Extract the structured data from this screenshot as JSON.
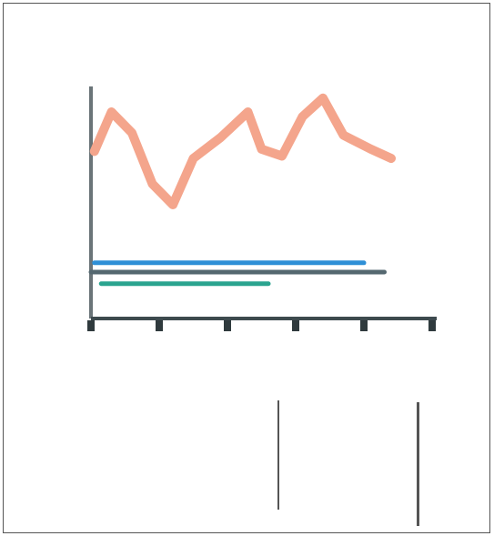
{
  "chart_data": {
    "type": "line",
    "title": "",
    "xlabel": "",
    "ylabel": "",
    "x": [
      0,
      1,
      2,
      3,
      4,
      5
    ],
    "xlim": [
      0,
      5
    ],
    "ylim": [
      0,
      10
    ],
    "grid": false,
    "series": [
      {
        "color": "#f4a58c",
        "points": [
          [
            0.05,
            7.2
          ],
          [
            0.3,
            8.9
          ],
          [
            0.6,
            8.0
          ],
          [
            0.9,
            5.8
          ],
          [
            1.2,
            4.9
          ],
          [
            1.5,
            6.9
          ],
          [
            1.9,
            7.8
          ],
          [
            2.3,
            8.9
          ],
          [
            2.5,
            7.3
          ],
          [
            2.8,
            7.0
          ],
          [
            3.1,
            8.7
          ],
          [
            3.4,
            9.5
          ],
          [
            3.7,
            7.9
          ],
          [
            4.1,
            7.3
          ],
          [
            4.4,
            6.9
          ]
        ]
      },
      {
        "color": "#2e8fd6",
        "points": [
          [
            0.05,
            2.4
          ],
          [
            0.7,
            2.4
          ],
          [
            1.25,
            2.4
          ],
          [
            1.9,
            2.4
          ],
          [
            2.6,
            2.4
          ],
          [
            3.3,
            2.4
          ],
          [
            4.0,
            2.4
          ]
        ]
      },
      {
        "color": "#556870",
        "points": [
          [
            0.0,
            2.0
          ],
          [
            0.85,
            2.0
          ],
          [
            1.5,
            2.0
          ],
          [
            2.2,
            2.0
          ],
          [
            3.0,
            2.0
          ],
          [
            3.6,
            2.0
          ],
          [
            4.3,
            2.0
          ]
        ]
      },
      {
        "color": "#2aa48f",
        "points": [
          [
            0.15,
            1.5
          ],
          [
            0.5,
            1.5
          ],
          [
            1.5,
            1.5
          ],
          [
            2.2,
            1.5
          ],
          [
            2.6,
            1.5
          ]
        ]
      }
    ]
  },
  "table": {
    "rows": [
      [
        "",
        "",
        "",
        "",
        "",
        "",
        ""
      ],
      [
        "",
        "",
        "",
        "",
        "",
        "",
        ""
      ],
      [
        "",
        "",
        "",
        "",
        "",
        "",
        ""
      ]
    ]
  }
}
